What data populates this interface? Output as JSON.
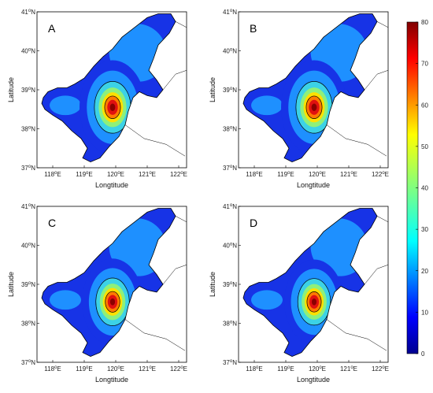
{
  "figure": {
    "x_label": "Longtitude",
    "y_label": "Latitude",
    "lon_ticks": [
      "118",
      "119",
      "120",
      "121",
      "122"
    ],
    "lat_ticks": [
      "37",
      "38",
      "39",
      "40",
      "41"
    ],
    "tick_suffix_lon": "E",
    "tick_suffix_lat": "N",
    "degree_symbol": "o",
    "panels": [
      {
        "letter": "A"
      },
      {
        "letter": "B"
      },
      {
        "letter": "C"
      },
      {
        "letter": "D"
      }
    ]
  },
  "colorbar": {
    "ticks": [
      "0",
      "10",
      "20",
      "30",
      "40",
      "50",
      "60",
      "70",
      "80"
    ],
    "min": 0,
    "max": 80,
    "colormap": "jet"
  },
  "colors": {
    "land_outline": "#000000",
    "background": "#ffffff"
  }
}
